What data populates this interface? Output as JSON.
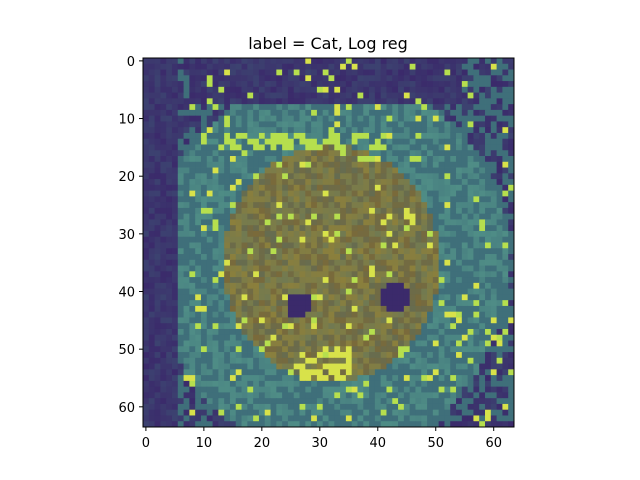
{
  "title": "label = Cat, Log reg",
  "image": {
    "description_name": "cat-photo-viridis-overlay",
    "pixel_grid": [
      64,
      64
    ],
    "colors": {
      "dark": "#3b2a6b",
      "mid": "#3f6f7a",
      "teal": "#4f8d86",
      "olive": "#8b7f3c",
      "brown": "#7a6a3a",
      "yellow": "#d8e24a",
      "bright": "#b6df4e"
    }
  },
  "axes": {
    "xlim": [
      -0.5,
      63.5
    ],
    "ylim": [
      63.5,
      -0.5
    ],
    "xticks": [
      "0",
      "10",
      "20",
      "30",
      "40",
      "50",
      "60"
    ],
    "yticks": [
      "0",
      "10",
      "20",
      "30",
      "40",
      "50",
      "60"
    ]
  }
}
